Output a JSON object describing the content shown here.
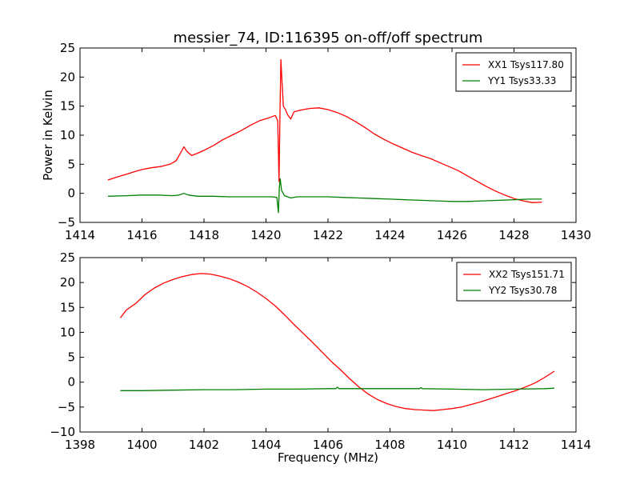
{
  "figure": {
    "title": "messier_74, ID:116395 on-off/off spectrum"
  },
  "colors": {
    "xx": "#ff0000",
    "yy": "#008000",
    "axes": "#000000",
    "background": "#ffffff"
  },
  "chart_data": [
    {
      "type": "line",
      "title": "messier_74, ID:116395 on-off/off spectrum",
      "xlabel": "",
      "ylabel": "Power in Kelvin",
      "xlim": [
        1414,
        1430
      ],
      "ylim": [
        -5,
        25
      ],
      "xticks": [
        1414,
        1416,
        1418,
        1420,
        1422,
        1424,
        1426,
        1428,
        1430
      ],
      "yticks": [
        -5,
        0,
        5,
        10,
        15,
        20,
        25
      ],
      "xtick_labels": [
        "1414",
        "1416",
        "1418",
        "1420",
        "1422",
        "1424",
        "1426",
        "1428",
        "1430"
      ],
      "ytick_labels": [
        "−5",
        "0",
        "5",
        "10",
        "15",
        "20",
        "25"
      ],
      "grid": false,
      "legend_position": "top-right",
      "series": [
        {
          "name": "XX1 Tsys117.80",
          "color": "#ff0000",
          "points": [
            [
              1414.9,
              2.3
            ],
            [
              1415.2,
              2.8
            ],
            [
              1415.5,
              3.3
            ],
            [
              1415.8,
              3.8
            ],
            [
              1416.0,
              4.1
            ],
            [
              1416.3,
              4.4
            ],
            [
              1416.6,
              4.6
            ],
            [
              1416.9,
              5.0
            ],
            [
              1417.1,
              5.6
            ],
            [
              1417.25,
              7.0
            ],
            [
              1417.35,
              8.0
            ],
            [
              1417.45,
              7.2
            ],
            [
              1417.6,
              6.5
            ],
            [
              1417.8,
              6.9
            ],
            [
              1418.0,
              7.4
            ],
            [
              1418.3,
              8.2
            ],
            [
              1418.6,
              9.2
            ],
            [
              1418.9,
              10.0
            ],
            [
              1419.2,
              10.8
            ],
            [
              1419.5,
              11.7
            ],
            [
              1419.8,
              12.5
            ],
            [
              1420.1,
              13.0
            ],
            [
              1420.3,
              13.4
            ],
            [
              1420.38,
              12.5
            ],
            [
              1420.42,
              2.0
            ],
            [
              1420.45,
              13.0
            ],
            [
              1420.48,
              23.0
            ],
            [
              1420.52,
              19.0
            ],
            [
              1420.56,
              15.0
            ],
            [
              1420.62,
              14.5
            ],
            [
              1420.7,
              13.5
            ],
            [
              1420.8,
              12.8
            ],
            [
              1420.9,
              14.0
            ],
            [
              1421.1,
              14.3
            ],
            [
              1421.4,
              14.6
            ],
            [
              1421.7,
              14.7
            ],
            [
              1422.0,
              14.4
            ],
            [
              1422.3,
              13.9
            ],
            [
              1422.6,
              13.2
            ],
            [
              1422.9,
              12.3
            ],
            [
              1423.2,
              11.3
            ],
            [
              1423.5,
              10.2
            ],
            [
              1423.8,
              9.3
            ],
            [
              1424.1,
              8.5
            ],
            [
              1424.4,
              7.8
            ],
            [
              1424.7,
              7.1
            ],
            [
              1425.0,
              6.5
            ],
            [
              1425.3,
              6.0
            ],
            [
              1425.6,
              5.3
            ],
            [
              1425.9,
              4.6
            ],
            [
              1426.2,
              3.9
            ],
            [
              1426.5,
              3.0
            ],
            [
              1426.8,
              2.1
            ],
            [
              1427.1,
              1.2
            ],
            [
              1427.4,
              0.4
            ],
            [
              1427.7,
              -0.3
            ],
            [
              1428.0,
              -0.9
            ],
            [
              1428.3,
              -1.3
            ],
            [
              1428.6,
              -1.6
            ],
            [
              1428.9,
              -1.5
            ]
          ]
        },
        {
          "name": "YY1 Tsys33.33",
          "color": "#008000",
          "points": [
            [
              1414.9,
              -0.5
            ],
            [
              1415.5,
              -0.4
            ],
            [
              1416.0,
              -0.3
            ],
            [
              1416.5,
              -0.3
            ],
            [
              1417.0,
              -0.4
            ],
            [
              1417.2,
              -0.3
            ],
            [
              1417.35,
              0.0
            ],
            [
              1417.5,
              -0.3
            ],
            [
              1417.8,
              -0.5
            ],
            [
              1418.3,
              -0.5
            ],
            [
              1418.8,
              -0.6
            ],
            [
              1419.3,
              -0.6
            ],
            [
              1419.8,
              -0.6
            ],
            [
              1420.2,
              -0.6
            ],
            [
              1420.35,
              -0.7
            ],
            [
              1420.4,
              -3.3
            ],
            [
              1420.43,
              1.0
            ],
            [
              1420.46,
              2.5
            ],
            [
              1420.5,
              0.5
            ],
            [
              1420.6,
              -0.4
            ],
            [
              1420.8,
              -0.8
            ],
            [
              1421.0,
              -0.6
            ],
            [
              1421.5,
              -0.6
            ],
            [
              1422.0,
              -0.6
            ],
            [
              1422.5,
              -0.7
            ],
            [
              1423.0,
              -0.8
            ],
            [
              1423.5,
              -0.9
            ],
            [
              1424.0,
              -1.0
            ],
            [
              1424.5,
              -1.1
            ],
            [
              1425.0,
              -1.2
            ],
            [
              1425.5,
              -1.3
            ],
            [
              1426.0,
              -1.4
            ],
            [
              1426.5,
              -1.4
            ],
            [
              1427.0,
              -1.3
            ],
            [
              1427.5,
              -1.2
            ],
            [
              1428.0,
              -1.1
            ],
            [
              1428.5,
              -1.0
            ],
            [
              1428.9,
              -1.0
            ]
          ]
        }
      ]
    },
    {
      "type": "line",
      "title": "",
      "xlabel": "Frequency (MHz)",
      "ylabel": "",
      "xlim": [
        1398,
        1414
      ],
      "ylim": [
        -10,
        25
      ],
      "xticks": [
        1398,
        1400,
        1402,
        1404,
        1406,
        1408,
        1410,
        1412,
        1414
      ],
      "yticks": [
        -10,
        -5,
        0,
        5,
        10,
        15,
        20,
        25
      ],
      "xtick_labels": [
        "1398",
        "1400",
        "1402",
        "1404",
        "1406",
        "1408",
        "1410",
        "1412",
        "1414"
      ],
      "ytick_labels": [
        "−10",
        "−5",
        "0",
        "5",
        "10",
        "15",
        "20",
        "25"
      ],
      "grid": false,
      "legend_position": "top-right",
      "series": [
        {
          "name": "XX2 Tsys151.71",
          "color": "#ff0000",
          "points": [
            [
              1399.3,
              12.9
            ],
            [
              1399.5,
              14.5
            ],
            [
              1399.8,
              15.8
            ],
            [
              1400.1,
              17.6
            ],
            [
              1400.4,
              18.9
            ],
            [
              1400.7,
              19.9
            ],
            [
              1401.0,
              20.6
            ],
            [
              1401.3,
              21.2
            ],
            [
              1401.6,
              21.6
            ],
            [
              1401.9,
              21.8
            ],
            [
              1402.2,
              21.7
            ],
            [
              1402.5,
              21.3
            ],
            [
              1402.8,
              20.8
            ],
            [
              1403.1,
              20.1
            ],
            [
              1403.4,
              19.2
            ],
            [
              1403.7,
              18.1
            ],
            [
              1404.0,
              16.8
            ],
            [
              1404.3,
              15.3
            ],
            [
              1404.6,
              13.5
            ],
            [
              1404.9,
              11.6
            ],
            [
              1405.2,
              9.8
            ],
            [
              1405.5,
              8.0
            ],
            [
              1405.8,
              6.1
            ],
            [
              1406.1,
              4.2
            ],
            [
              1406.4,
              2.5
            ],
            [
              1406.7,
              0.7
            ],
            [
              1407.0,
              -1.0
            ],
            [
              1407.3,
              -2.4
            ],
            [
              1407.6,
              -3.5
            ],
            [
              1407.9,
              -4.3
            ],
            [
              1408.2,
              -4.9
            ],
            [
              1408.5,
              -5.3
            ],
            [
              1408.8,
              -5.5
            ],
            [
              1409.1,
              -5.6
            ],
            [
              1409.4,
              -5.7
            ],
            [
              1409.7,
              -5.5
            ],
            [
              1410.0,
              -5.3
            ],
            [
              1410.3,
              -5.0
            ],
            [
              1410.6,
              -4.5
            ],
            [
              1410.9,
              -4.0
            ],
            [
              1411.2,
              -3.4
            ],
            [
              1411.5,
              -2.8
            ],
            [
              1411.8,
              -2.2
            ],
            [
              1412.1,
              -1.6
            ],
            [
              1412.4,
              -0.9
            ],
            [
              1412.7,
              -0.1
            ],
            [
              1413.0,
              1.0
            ],
            [
              1413.3,
              2.2
            ]
          ]
        },
        {
          "name": "YY2 Tsys30.78",
          "color": "#008000",
          "points": [
            [
              1399.3,
              -1.7
            ],
            [
              1400.0,
              -1.7
            ],
            [
              1401.0,
              -1.6
            ],
            [
              1402.0,
              -1.5
            ],
            [
              1403.0,
              -1.5
            ],
            [
              1404.0,
              -1.4
            ],
            [
              1405.0,
              -1.4
            ],
            [
              1406.0,
              -1.3
            ],
            [
              1406.25,
              -1.3
            ],
            [
              1406.3,
              -1.0
            ],
            [
              1406.35,
              -1.3
            ],
            [
              1407.0,
              -1.3
            ],
            [
              1408.0,
              -1.3
            ],
            [
              1408.95,
              -1.3
            ],
            [
              1409.0,
              -1.1
            ],
            [
              1409.05,
              -1.3
            ],
            [
              1410.0,
              -1.4
            ],
            [
              1411.0,
              -1.5
            ],
            [
              1412.0,
              -1.4
            ],
            [
              1413.0,
              -1.3
            ],
            [
              1413.3,
              -1.2
            ]
          ]
        }
      ]
    }
  ]
}
